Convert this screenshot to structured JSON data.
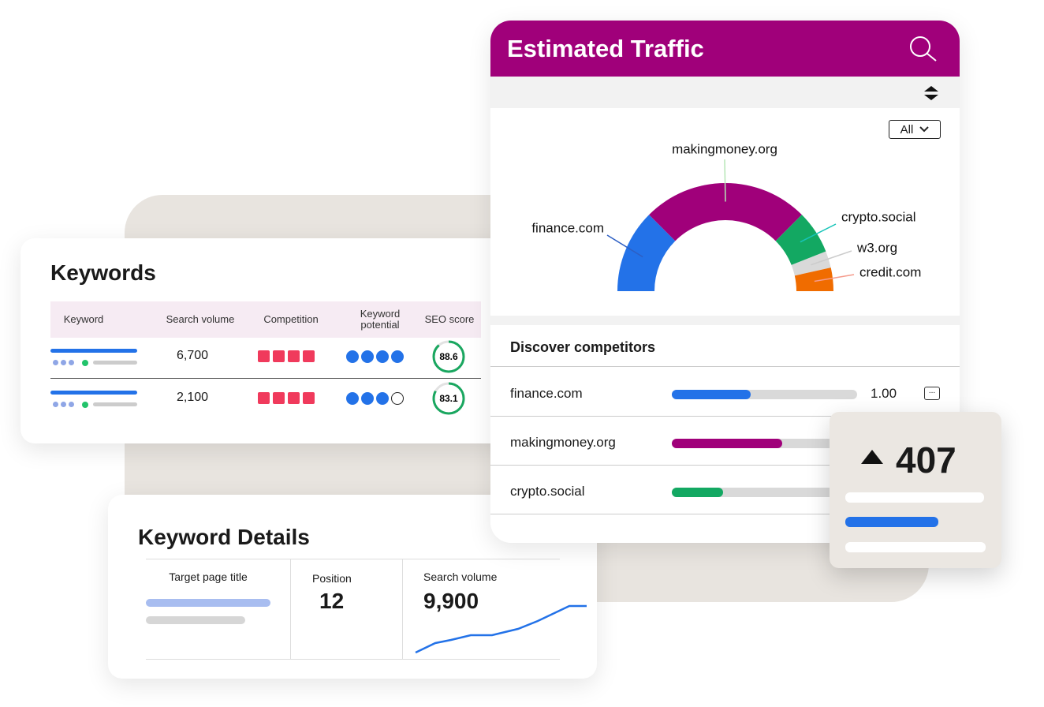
{
  "keywords": {
    "title": "Keywords",
    "columns": [
      "Keyword",
      "Search volume",
      "Competition",
      "Keyword potential",
      "SEO score"
    ],
    "rows": [
      {
        "search_volume": "6,700",
        "seo_score": 88.6
      },
      {
        "search_volume": "2,100",
        "seo_score": 83.1
      }
    ]
  },
  "keyword_details": {
    "title": "Keyword Details",
    "target_label": "Target page title",
    "position_label": "Position",
    "position": 12,
    "volume_label": "Search volume",
    "volume": "9,900"
  },
  "traffic": {
    "title": "Estimated Traffic",
    "filter": "All"
  },
  "chart_data": {
    "type": "pie",
    "half": true,
    "categories": [
      "finance.com",
      "makingmoney.org",
      "crypto.social",
      "w3.org",
      "credit.com"
    ],
    "values": [
      25,
      50,
      13,
      5,
      7
    ],
    "colors": [
      "#2372e8",
      "#a0007a",
      "#13a862",
      "#d9d9d9",
      "#f06c00"
    ]
  },
  "competitors": {
    "title": "Discover competitors",
    "rows": [
      {
        "name": "finance.com",
        "score": "1.00"
      },
      {
        "name": "makingmoney.org"
      },
      {
        "name": "crypto.social"
      }
    ]
  },
  "popup": {
    "value": 407
  }
}
